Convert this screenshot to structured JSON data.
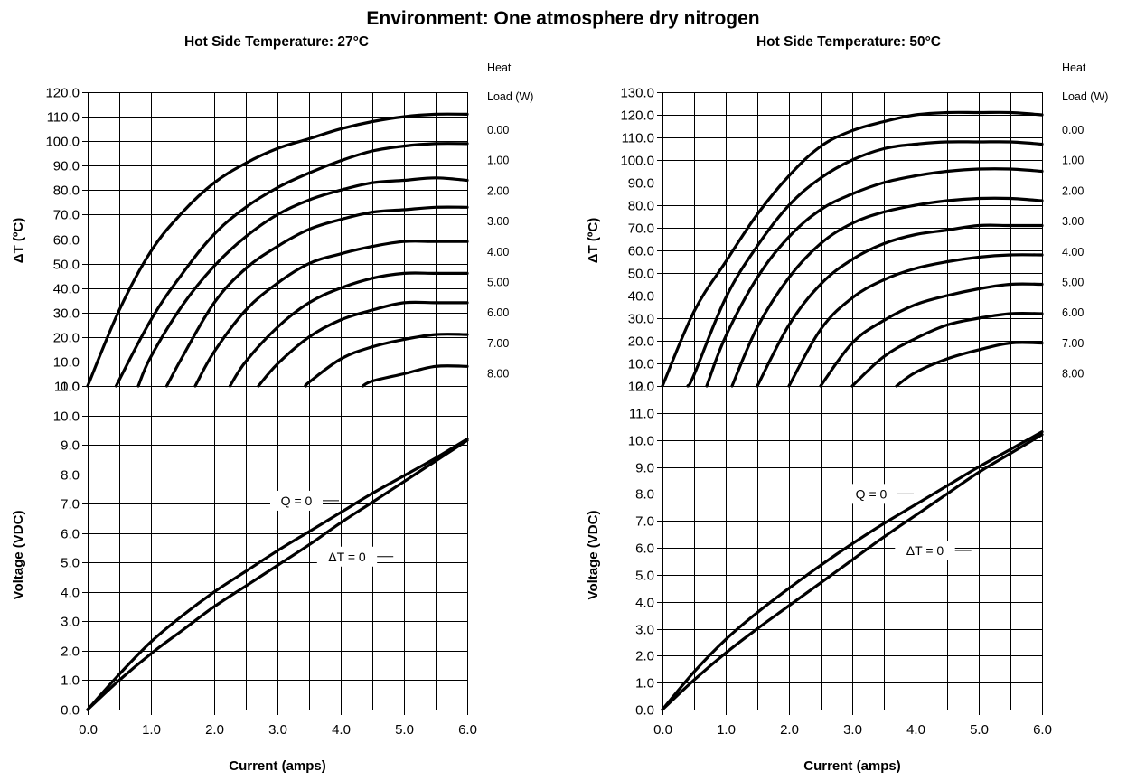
{
  "header": {
    "main_title": "Environment:  One atmosphere dry nitrogen"
  },
  "chart_data": [
    {
      "type": "line",
      "title": "Hot Side Temperature: 27°C",
      "xlabel": "Current (amps)",
      "ylabel": "ΔT (ºC)",
      "xlim": [
        0,
        6
      ],
      "ylim": [
        0,
        120
      ],
      "xticks": [
        "0.0",
        "1.0",
        "2.0",
        "3.0",
        "4.0",
        "5.0",
        "6.0"
      ],
      "yticks": [
        "0.0",
        "10.0",
        "20.0",
        "30.0",
        "40.0",
        "50.0",
        "60.0",
        "70.0",
        "80.0",
        "90.0",
        "100.0",
        "110.0",
        "120.0"
      ],
      "grid": true,
      "legend_title_line1": "Heat",
      "legend_title_line2": "Load (W)",
      "series": [
        {
          "name": "0.00",
          "x": [
            0.0,
            0.5,
            1.0,
            1.5,
            2.0,
            2.5,
            3.0,
            3.5,
            4.0,
            4.5,
            5.0,
            5.5,
            6.0
          ],
          "y": [
            0,
            31,
            55,
            71,
            83,
            91,
            97,
            101,
            105,
            108,
            110,
            111,
            111
          ]
        },
        {
          "name": "1.00",
          "x": [
            0.45,
            1.0,
            1.5,
            2.0,
            2.5,
            3.0,
            3.5,
            4.0,
            4.5,
            5.0,
            5.5,
            6.0
          ],
          "y": [
            0,
            27,
            46,
            62,
            73,
            81,
            87,
            92,
            96,
            98,
            99,
            99
          ]
        },
        {
          "name": "2.00",
          "x": [
            0.8,
            1.0,
            1.5,
            2.0,
            2.5,
            3.0,
            3.5,
            4.0,
            4.5,
            5.0,
            5.5,
            6.0
          ],
          "y": [
            0,
            12,
            33,
            49,
            61,
            70,
            76,
            80,
            83,
            84,
            85,
            84
          ]
        },
        {
          "name": "3.00",
          "x": [
            1.25,
            1.5,
            2.0,
            2.5,
            3.0,
            3.5,
            4.0,
            4.5,
            5.0,
            5.5,
            6.0
          ],
          "y": [
            0,
            12,
            34,
            48,
            57,
            64,
            68,
            71,
            72,
            73,
            73
          ]
        },
        {
          "name": "4.00",
          "x": [
            1.7,
            2.0,
            2.5,
            3.0,
            3.5,
            4.0,
            4.5,
            5.0,
            5.5,
            6.0
          ],
          "y": [
            0,
            14,
            31,
            42,
            50,
            54,
            57,
            59,
            59,
            59
          ]
        },
        {
          "name": "5.00",
          "x": [
            2.25,
            2.5,
            3.0,
            3.5,
            4.0,
            4.5,
            5.0,
            5.5,
            6.0
          ],
          "y": [
            0,
            10,
            24,
            34,
            40,
            44,
            46,
            46,
            46
          ]
        },
        {
          "name": "6.00",
          "x": [
            2.7,
            3.0,
            3.5,
            4.0,
            4.5,
            5.0,
            5.5,
            6.0
          ],
          "y": [
            0,
            9,
            20,
            27,
            31,
            34,
            34,
            34
          ]
        },
        {
          "name": "7.00",
          "x": [
            3.45,
            3.5,
            4.0,
            4.5,
            5.0,
            5.5,
            6.0
          ],
          "y": [
            0,
            1.5,
            11,
            16,
            19,
            21,
            21
          ]
        },
        {
          "name": "8.00",
          "x": [
            4.35,
            4.5,
            5.0,
            5.5,
            6.0
          ],
          "y": [
            0,
            2,
            5,
            8,
            8
          ]
        }
      ]
    },
    {
      "type": "line",
      "title": "Hot Side Temperature: 50°C",
      "xlabel": "Current (amps)",
      "ylabel": "ΔT (ºC)",
      "xlim": [
        0,
        6
      ],
      "ylim": [
        0,
        130
      ],
      "xticks": [
        "0.0",
        "1.0",
        "2.0",
        "3.0",
        "4.0",
        "5.0",
        "6.0"
      ],
      "yticks": [
        "0.0",
        "10.0",
        "20.0",
        "30.0",
        "40.0",
        "50.0",
        "60.0",
        "70.0",
        "80.0",
        "90.0",
        "100.0",
        "110.0",
        "120.0",
        "130.0"
      ],
      "grid": true,
      "legend_title_line1": "Heat",
      "legend_title_line2": "Load (W)",
      "series": [
        {
          "name": "0.00",
          "x": [
            0.0,
            0.5,
            1.0,
            1.5,
            2.0,
            2.5,
            3.0,
            3.5,
            4.0,
            4.5,
            5.0,
            5.5,
            6.0
          ],
          "y": [
            0,
            33,
            55,
            76,
            93,
            106,
            113,
            117,
            120,
            121,
            121,
            121,
            120
          ]
        },
        {
          "name": "1.00",
          "x": [
            0.4,
            0.5,
            1.0,
            1.5,
            2.0,
            2.5,
            3.0,
            3.5,
            4.0,
            4.5,
            5.0,
            5.5,
            6.0
          ],
          "y": [
            0,
            5,
            39,
            62,
            80,
            92,
            100,
            105,
            107,
            108,
            108,
            108,
            107
          ]
        },
        {
          "name": "2.00",
          "x": [
            0.7,
            1.0,
            1.5,
            2.0,
            2.5,
            3.0,
            3.5,
            4.0,
            4.5,
            5.0,
            5.5,
            6.0
          ],
          "y": [
            0,
            22,
            48,
            66,
            78,
            85,
            90,
            93,
            95,
            96,
            96,
            95
          ]
        },
        {
          "name": "3.00",
          "x": [
            1.1,
            1.5,
            2.0,
            2.5,
            3.0,
            3.5,
            4.0,
            4.5,
            5.0,
            5.5,
            6.0
          ],
          "y": [
            0,
            26,
            48,
            63,
            72,
            77,
            80,
            82,
            83,
            83,
            82
          ]
        },
        {
          "name": "4.00",
          "x": [
            1.5,
            2.0,
            2.5,
            3.0,
            3.5,
            4.0,
            4.5,
            5.0,
            5.5,
            6.0
          ],
          "y": [
            0,
            27,
            45,
            56,
            63,
            67,
            69,
            71,
            71,
            71
          ]
        },
        {
          "name": "5.00",
          "x": [
            2.0,
            2.5,
            3.0,
            3.5,
            4.0,
            4.5,
            5.0,
            5.5,
            6.0
          ],
          "y": [
            0,
            25,
            39,
            47,
            52,
            55,
            57,
            58,
            58
          ]
        },
        {
          "name": "6.00",
          "x": [
            2.5,
            3.0,
            3.5,
            4.0,
            4.5,
            5.0,
            5.5,
            6.0
          ],
          "y": [
            0,
            19,
            29,
            36,
            40,
            43,
            45,
            45
          ]
        },
        {
          "name": "7.00",
          "x": [
            3.0,
            3.5,
            4.0,
            4.5,
            5.0,
            5.5,
            6.0
          ],
          "y": [
            0,
            13,
            21,
            27,
            30,
            32,
            32
          ]
        },
        {
          "name": "8.00",
          "x": [
            3.7,
            4.0,
            4.5,
            5.0,
            5.5,
            6.0
          ],
          "y": [
            0,
            6,
            12,
            16,
            19,
            19
          ]
        }
      ]
    },
    {
      "type": "line",
      "title": "",
      "xlabel": "Current (amps)",
      "ylabel": "Voltage (VDC)",
      "xlim": [
        0,
        6
      ],
      "ylim": [
        0,
        11
      ],
      "xticks": [
        "0.0",
        "1.0",
        "2.0",
        "3.0",
        "4.0",
        "5.0",
        "6.0"
      ],
      "yticks": [
        "0.0",
        "1.0",
        "2.0",
        "3.0",
        "4.0",
        "5.0",
        "6.0",
        "7.0",
        "8.0",
        "9.0",
        "10.0",
        "11.0"
      ],
      "grid": true,
      "series": [
        {
          "name": "Q = 0",
          "x": [
            0,
            0.5,
            1,
            1.5,
            2,
            2.5,
            3,
            3.5,
            4,
            4.5,
            5,
            5.5,
            6
          ],
          "y": [
            0,
            1.2,
            2.3,
            3.2,
            4.0,
            4.7,
            5.4,
            6.05,
            6.7,
            7.35,
            7.95,
            8.55,
            9.2
          ]
        },
        {
          "name": "ΔT = 0",
          "x": [
            0,
            0.5,
            1,
            1.5,
            2,
            2.5,
            3,
            3.5,
            4,
            4.5,
            5,
            5.5,
            6
          ],
          "y": [
            0,
            1.0,
            1.9,
            2.7,
            3.5,
            4.2,
            4.9,
            5.6,
            6.35,
            7.05,
            7.75,
            8.45,
            9.15
          ]
        }
      ],
      "annotations": [
        {
          "text": "Q = 0",
          "x": 3.3,
          "y": 7.1
        },
        {
          "text": "ΔT = 0",
          "x": 4.1,
          "y": 5.2
        }
      ]
    },
    {
      "type": "line",
      "title": "",
      "xlabel": "Current (amps)",
      "ylabel": "Voltage (VDC)",
      "xlim": [
        0,
        6
      ],
      "ylim": [
        0,
        12
      ],
      "xticks": [
        "0.0",
        "1.0",
        "2.0",
        "3.0",
        "4.0",
        "5.0",
        "6.0"
      ],
      "yticks": [
        "0.0",
        "1.0",
        "2.0",
        "3.0",
        "4.0",
        "5.0",
        "6.0",
        "7.0",
        "8.0",
        "9.0",
        "10.0",
        "11.0",
        "12.0"
      ],
      "grid": true,
      "series": [
        {
          "name": "Q = 0",
          "x": [
            0,
            0.5,
            1,
            1.5,
            2,
            2.5,
            3,
            3.5,
            4,
            4.5,
            5,
            5.5,
            6
          ],
          "y": [
            0,
            1.4,
            2.6,
            3.6,
            4.5,
            5.35,
            6.15,
            6.9,
            7.6,
            8.3,
            9.0,
            9.65,
            10.3
          ]
        },
        {
          "name": "ΔT = 0",
          "x": [
            0,
            0.5,
            1,
            1.5,
            2,
            2.5,
            3,
            3.5,
            4,
            4.5,
            5,
            5.5,
            6
          ],
          "y": [
            0,
            1.1,
            2.1,
            3.0,
            3.85,
            4.7,
            5.55,
            6.4,
            7.2,
            8.0,
            8.8,
            9.5,
            10.2
          ]
        }
      ],
      "annotations": [
        {
          "text": "Q = 0",
          "x": 3.3,
          "y": 8.0
        },
        {
          "text": "ΔT = 0",
          "x": 4.15,
          "y": 5.9
        }
      ]
    }
  ]
}
